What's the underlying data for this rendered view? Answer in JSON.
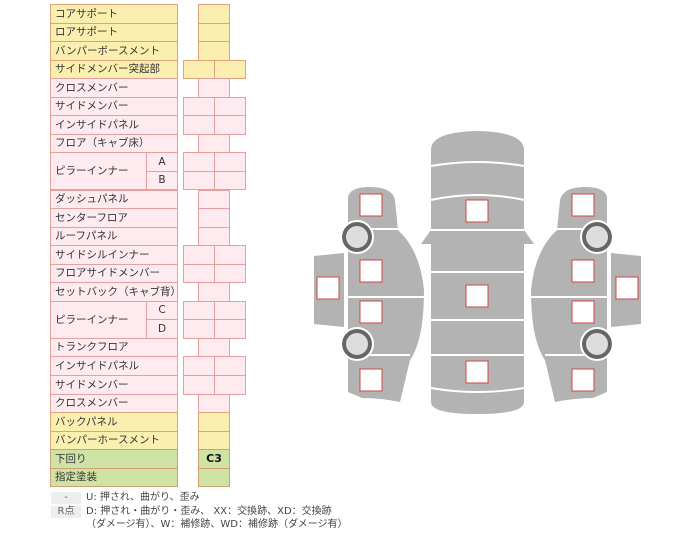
{
  "rows": [
    {
      "label": "コアサポート",
      "color": "y",
      "cells": "single"
    },
    {
      "label": "ロアサポート",
      "color": "y",
      "cells": "single"
    },
    {
      "label": "バンパーボースメント",
      "color": "y",
      "cells": "single"
    },
    {
      "label": "サイドメンバー突起部",
      "color": "y",
      "cells": "double"
    },
    {
      "label": "クロスメンバー",
      "color": "p",
      "cells": "single"
    },
    {
      "label": "サイドメンバー",
      "color": "p",
      "cells": "double"
    },
    {
      "label": "インサイドパネル",
      "color": "p",
      "cells": "double"
    },
    {
      "label": "フロア（キャブ床）",
      "color": "p",
      "cells": "single"
    },
    {
      "label": "ピラーインナー",
      "color": "p",
      "cells": "double",
      "sub": "A",
      "group": 2
    },
    {
      "label": "",
      "color": "p",
      "cells": "double",
      "sub": "B",
      "cont": true
    },
    {
      "label": "ダッシュパネル",
      "color": "p",
      "cells": "single"
    },
    {
      "label": "センターフロア",
      "color": "p",
      "cells": "single"
    },
    {
      "label": "ルーフパネル",
      "color": "p",
      "cells": "single"
    },
    {
      "label": "サイドシルインナー",
      "color": "p",
      "cells": "double"
    },
    {
      "label": "フロアサイドメンバー",
      "color": "p",
      "cells": "double"
    },
    {
      "label": "セットバック（キャブ背）",
      "color": "p",
      "cells": "single"
    },
    {
      "label": "ピラーインナー",
      "color": "p",
      "cells": "double",
      "sub": "C",
      "group": 2
    },
    {
      "label": "",
      "color": "p",
      "cells": "double",
      "sub": "D",
      "cont": true
    },
    {
      "label": "トランクフロア",
      "color": "p",
      "cells": "single"
    },
    {
      "label": "インサイドパネル",
      "color": "p",
      "cells": "double"
    },
    {
      "label": "サイドメンバー",
      "color": "p",
      "cells": "double"
    },
    {
      "label": "クロスメンバー",
      "color": "p",
      "cells": "single"
    },
    {
      "label": "バックパネル",
      "color": "y",
      "cells": "single"
    },
    {
      "label": "バンパーホースメント",
      "color": "y",
      "cells": "single"
    },
    {
      "label": "下回り",
      "color": "g",
      "cells": "single",
      "value": "C3"
    },
    {
      "label": "指定塗装",
      "color": "g",
      "cells": "single"
    }
  ],
  "legend": {
    "key1": "-",
    "text1": "U: 押され、曲がり、歪み",
    "key2": "R点",
    "text2a": "D: 押され・曲がり・歪み、 XX：交換跡、XD：交換跡",
    "text2b": "（ダメージ有）、W：補修跡、WD：補修跡（ダメージ有）"
  },
  "colors": {
    "yellow": "#fbefb0",
    "pink": "#fdebef",
    "green": "#cfe3a6",
    "car": "#b3b3b3",
    "marker": "#d0453f"
  }
}
